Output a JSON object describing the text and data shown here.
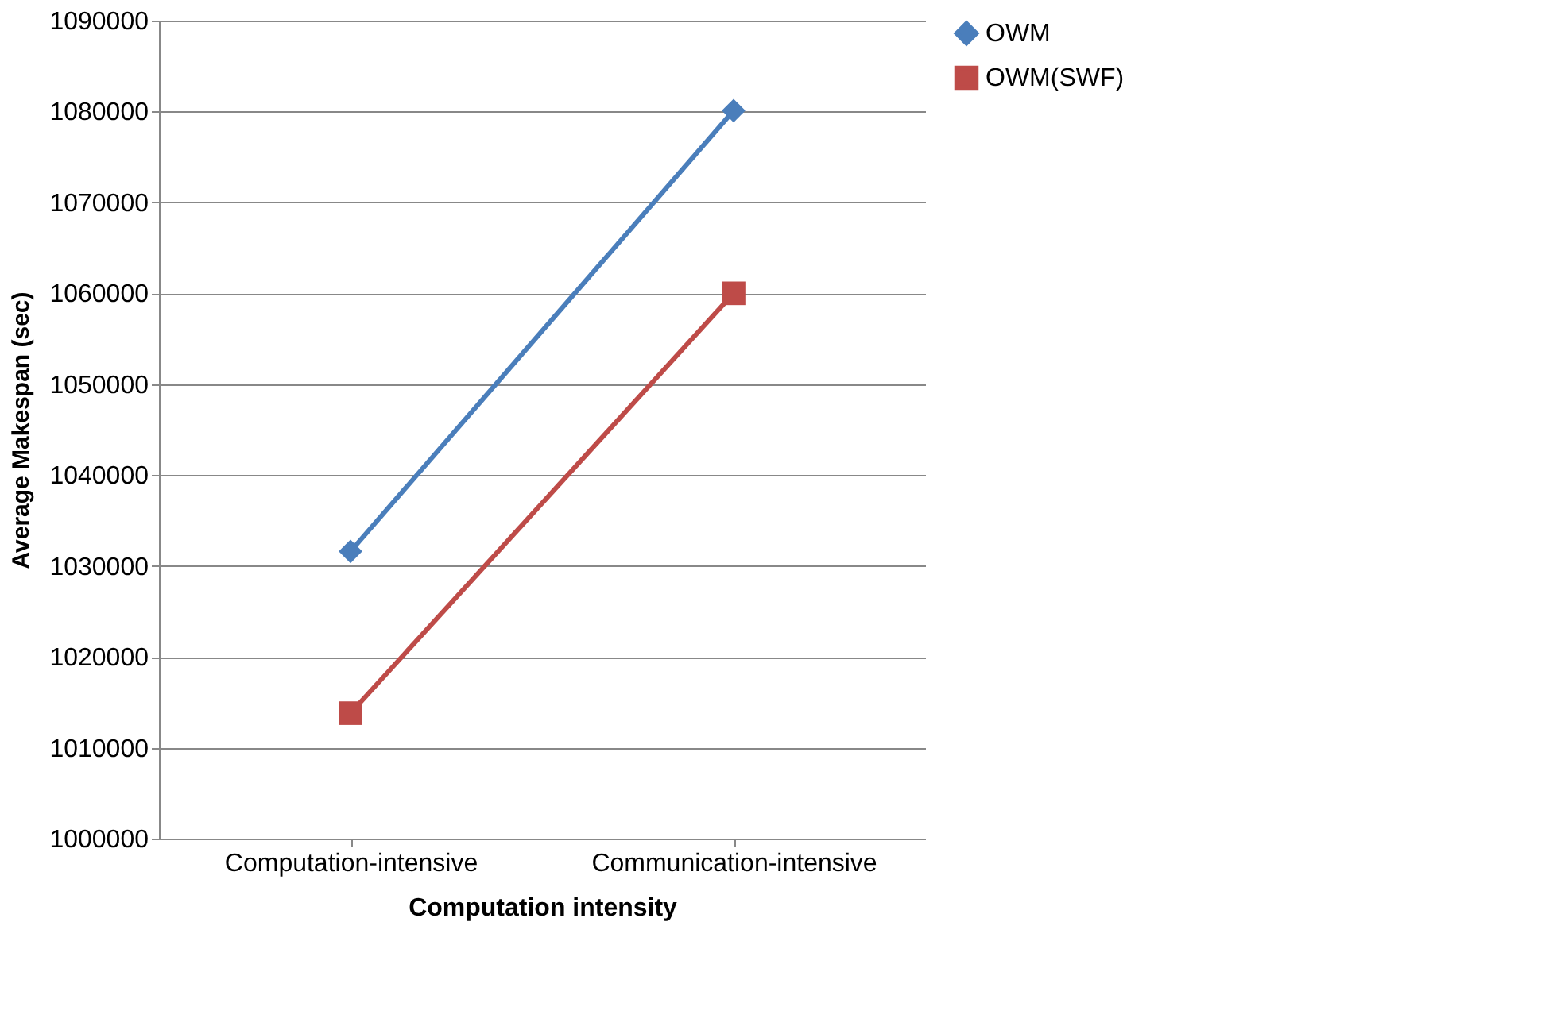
{
  "chart_data": {
    "type": "line",
    "xlabel": "Computation intensity",
    "ylabel": "Average Makespan (sec)",
    "categories": [
      "Computation-intensive",
      "Communication-intensive"
    ],
    "series": [
      {
        "name": "OWM",
        "color": "#4a7ebb",
        "marker": "diamond",
        "values": [
          1031600,
          1080100
        ]
      },
      {
        "name": "OWM(SWF)",
        "color": "#be4b48",
        "marker": "square",
        "values": [
          1013800,
          1060000
        ]
      }
    ],
    "ylim": [
      1000000,
      1090000
    ],
    "yticks": [
      1000000,
      1010000,
      1020000,
      1030000,
      1040000,
      1050000,
      1060000,
      1070000,
      1080000,
      1090000
    ],
    "grid": "y",
    "legend": "right",
    "line_style": "solid"
  }
}
